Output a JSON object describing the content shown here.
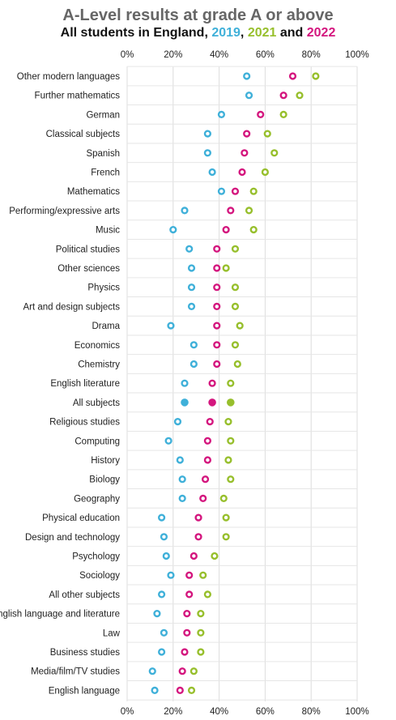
{
  "chart_data": {
    "type": "scatter",
    "title": "A-Level results at grade A or above",
    "subtitle_parts": [
      "All students in England, ",
      "2019",
      ", ",
      "2021",
      " and ",
      "2022"
    ],
    "xlim": [
      0,
      100
    ],
    "x_ticks": [
      "0%",
      "20%",
      "40%",
      "60%",
      "80%",
      "100%"
    ],
    "categories": [
      "Other modern languages",
      "Further mathematics",
      "German",
      "Classical subjects",
      "Spanish",
      "French",
      "Mathematics",
      "Performing/expressive arts",
      "Music",
      "Political studies",
      "Other sciences",
      "Physics",
      "Art and design subjects",
      "Drama",
      "Economics",
      "Chemistry",
      "English literature",
      "All subjects",
      "Religious studies",
      "Computing",
      "History",
      "Biology",
      "Geography",
      "Physical education",
      "Design and technology",
      "Psychology",
      "Sociology",
      "All other subjects",
      "English language and literature",
      "Law",
      "Business studies",
      "Media/film/TV studies",
      "English language"
    ],
    "highlight_category": "All subjects",
    "series": [
      {
        "name": "2019",
        "color": "#3fb0d9",
        "values": [
          52,
          53,
          41,
          35,
          35,
          37,
          41,
          25,
          20,
          27,
          28,
          28,
          28,
          19,
          29,
          29,
          25,
          25,
          22,
          18,
          23,
          24,
          24,
          15,
          16,
          17,
          19,
          15,
          13,
          16,
          15,
          11,
          12
        ]
      },
      {
        "name": "2021",
        "color": "#97bf2c",
        "values": [
          82,
          75,
          68,
          61,
          64,
          60,
          55,
          53,
          55,
          47,
          43,
          47,
          47,
          49,
          47,
          48,
          45,
          45,
          44,
          45,
          44,
          45,
          42,
          43,
          43,
          38,
          33,
          35,
          32,
          32,
          32,
          29,
          28
        ]
      },
      {
        "name": "2022",
        "color": "#d4167e",
        "values": [
          72,
          68,
          58,
          52,
          51,
          50,
          47,
          45,
          43,
          39,
          39,
          39,
          39,
          39,
          39,
          39,
          37,
          37,
          36,
          35,
          35,
          34,
          33,
          31,
          31,
          29,
          27,
          27,
          26,
          26,
          25,
          24,
          23
        ]
      }
    ],
    "grid": true,
    "legend": "subtitle"
  }
}
